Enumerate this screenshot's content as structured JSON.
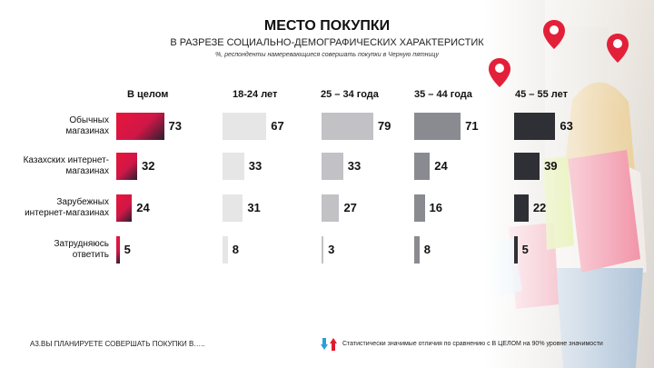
{
  "header": {
    "title": "МЕСТО ПОКУПКИ",
    "subtitle": "В РАЗРЕЗЕ СОЦИАЛЬНО-ДЕМОГРАФИЧЕСКИХ ХАРАКТЕРИСТИК",
    "note": "%,   респонденты намеревающиеся совершать покупки в Черную пятницу"
  },
  "footer": {
    "question": "А3.ВЫ ПЛАНИРУЕТЕ СОВЕРШАТЬ ПОКУПКИ В…..",
    "legend": "Статистически   значимые  отличия  по  сравнению  с  В ЦЕЛОМ  на 90%  уровне  значимости"
  },
  "icons": {
    "down_arrow": "arrow-down-blue-icon",
    "up_arrow": "arrow-up-red-icon",
    "pin": "map-pin-icon",
    "colors": {
      "down": "#2a9fd8",
      "up": "#e0192f",
      "pin": "#e3203a"
    }
  },
  "chart_data": {
    "type": "bar",
    "categories": [
      "Обычных\nмагазинах",
      "Казахских интернет-\nмагазинах",
      "Зарубежных\nинтернет-магазинах",
      "Затрудняюсь\nответить"
    ],
    "series": [
      {
        "name": "В целом",
        "values": [
          73,
          32,
          24,
          5
        ],
        "color": "gradient-red"
      },
      {
        "name": "18-24 лет",
        "values": [
          67,
          33,
          31,
          8
        ],
        "color": "#e6e6e6"
      },
      {
        "name": "25 – 34 года",
        "values": [
          79,
          33,
          27,
          3
        ],
        "color": "#c2c2c6"
      },
      {
        "name": "35 – 44 года",
        "values": [
          71,
          24,
          16,
          8
        ],
        "color": "#8a8b91"
      },
      {
        "name": "45 – 55 лет",
        "values": [
          63,
          39,
          22,
          5
        ],
        "color": "#2f3035"
      }
    ],
    "orientation": "horizontal",
    "xlim": [
      0,
      100
    ]
  }
}
